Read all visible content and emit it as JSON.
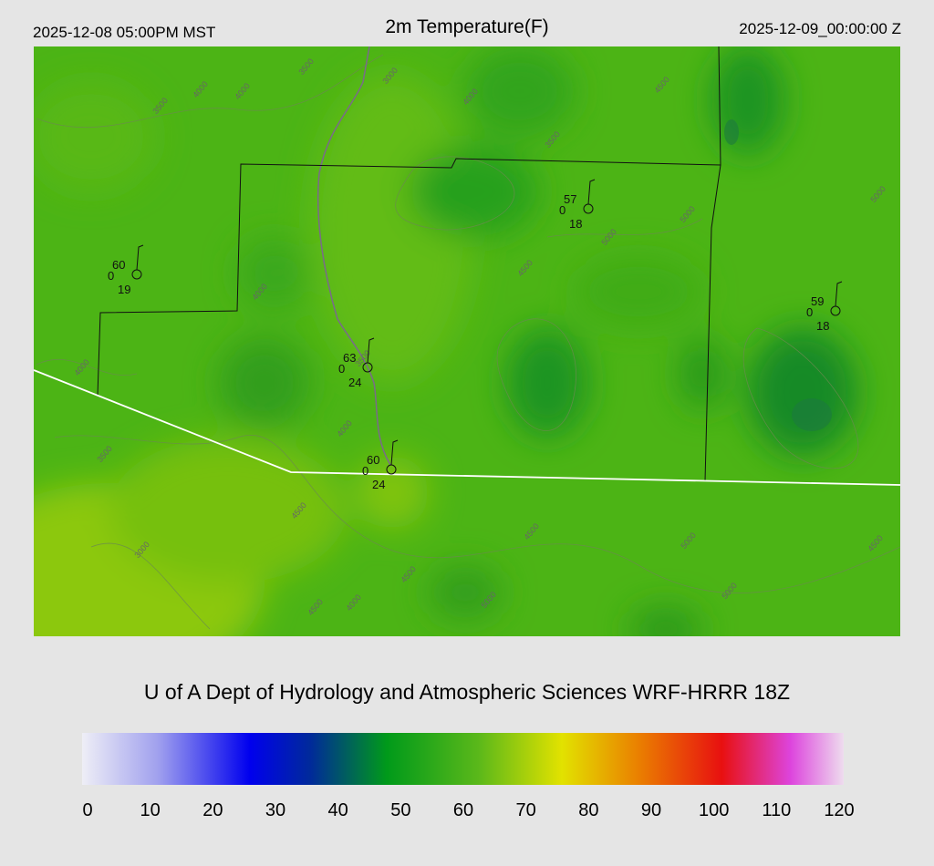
{
  "header": {
    "left": "2025-12-08 05:00PM MST",
    "title": "2m Temperature(F)",
    "right": "2025-12-09_00:00:00 Z"
  },
  "stations": [
    {
      "temp": "60",
      "wind": "0",
      "dew": "19"
    },
    {
      "temp": "63",
      "wind": "0",
      "dew": "24"
    },
    {
      "temp": "60",
      "wind": "0",
      "dew": "24"
    },
    {
      "temp": "57",
      "wind": "0",
      "dew": "18"
    },
    {
      "temp": "59",
      "wind": "0",
      "dew": "18"
    }
  ],
  "contour_labels": [
    "3500",
    "4000",
    "4000",
    "3500",
    "3000",
    "4000",
    "3500",
    "4500",
    "5000",
    "5000",
    "4500",
    "4000",
    "4000",
    "3500",
    "4000",
    "3500",
    "4500",
    "3000",
    "4500",
    "4500",
    "4000",
    "5000",
    "4500",
    "5000",
    "5000",
    "4500",
    "5000"
  ],
  "footer": "U of A Dept of Hydrology and Atmospheric Sciences WRF-HRRR 18Z",
  "colorbar": {
    "ticks": [
      "0",
      "10",
      "20",
      "30",
      "40",
      "50",
      "60",
      "70",
      "80",
      "90",
      "100",
      "110",
      "120"
    ]
  }
}
